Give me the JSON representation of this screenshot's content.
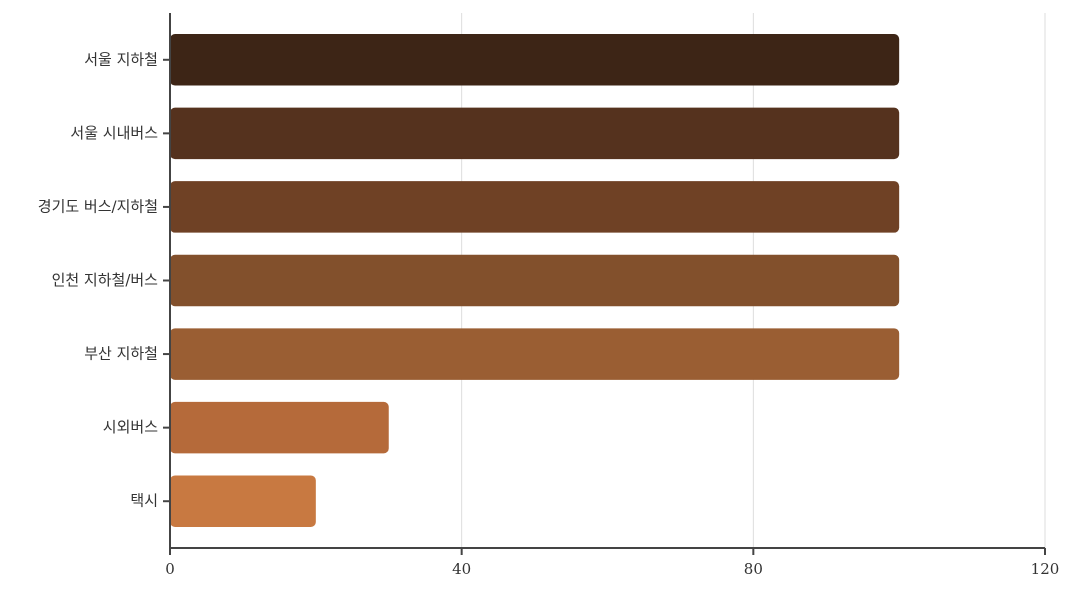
{
  "chart_data": {
    "type": "barh",
    "categories": [
      "서울 지하철",
      "서울 시내버스",
      "경기도 버스/지하철",
      "인천 지하철/버스",
      "부산 지하철",
      "시외버스",
      "택시"
    ],
    "values": [
      100,
      100,
      100,
      100,
      100,
      30,
      20
    ],
    "colors": [
      "#3d2516",
      "#55321e",
      "#6f4125",
      "#82502c",
      "#9a5e33",
      "#b56a3a",
      "#c87941"
    ],
    "xlim": [
      0,
      120
    ],
    "xticks": [
      0,
      40,
      80,
      120
    ],
    "grid": true
  }
}
